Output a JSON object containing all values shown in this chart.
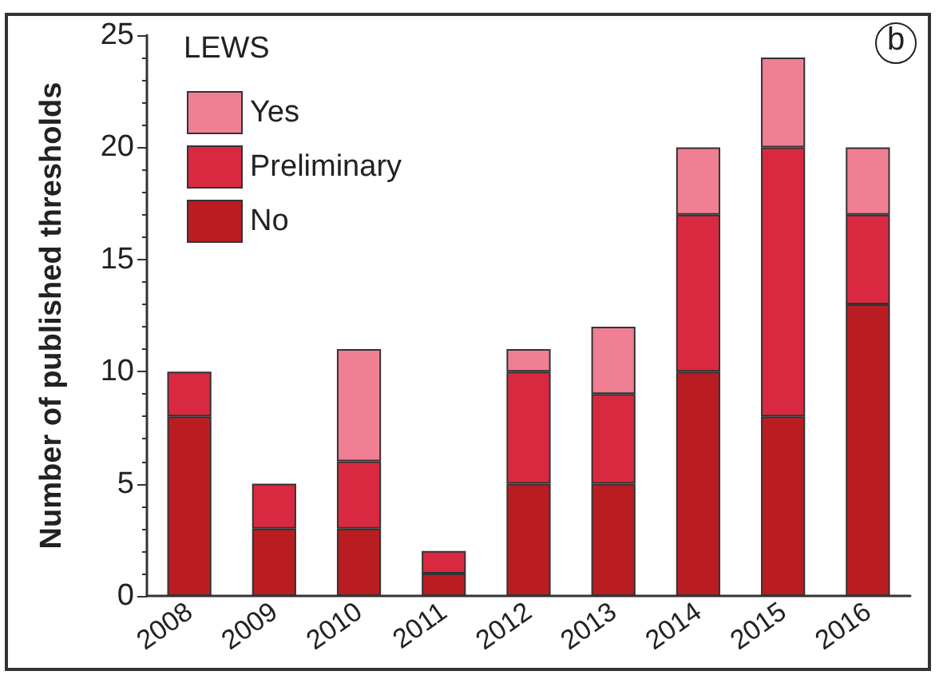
{
  "chart_data": {
    "type": "bar",
    "stacked": true,
    "ylabel": "Number of published thresholds",
    "legend_title": "LEWS",
    "legend": "top left",
    "grid": false,
    "categories": [
      "2008",
      "2009",
      "2010",
      "2011",
      "2012",
      "2013",
      "2014",
      "2015",
      "2016"
    ],
    "series": [
      {
        "name": "No",
        "color": "#b91d22",
        "values": [
          8,
          3,
          3,
          1,
          5,
          5,
          10,
          8,
          13
        ]
      },
      {
        "name": "Preliminary",
        "color": "#d92940",
        "values": [
          2,
          2,
          3,
          1,
          5,
          4,
          7,
          12,
          4
        ]
      },
      {
        "name": "Yes",
        "color": "#f07f93",
        "values": [
          0,
          0,
          5,
          0,
          1,
          3,
          3,
          4,
          3
        ]
      }
    ],
    "ylim": [
      0,
      25
    ],
    "yticks": [
      0,
      5,
      10,
      15,
      20,
      25
    ],
    "annotations": [
      "b"
    ]
  }
}
